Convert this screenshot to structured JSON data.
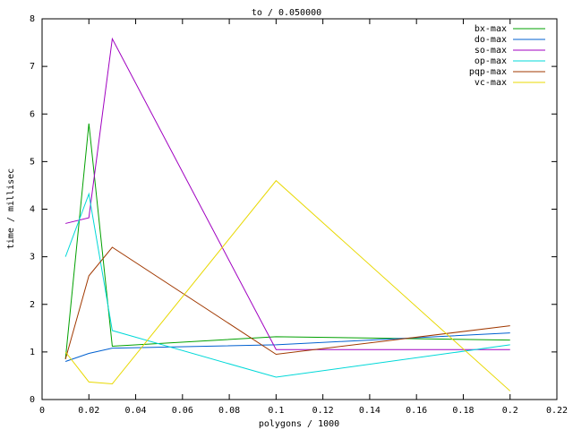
{
  "chart_data": {
    "type": "line",
    "title": "to / 0.050000",
    "x_label": "polygons / 1000",
    "y_label": "time / millisec",
    "x": [
      0.01,
      0.02,
      0.03,
      0.1,
      0.2
    ],
    "series": [
      {
        "name": "bx-max",
        "color": "#00a000",
        "values": [
          0.85,
          5.8,
          1.12,
          1.32,
          1.25
        ]
      },
      {
        "name": "do-max",
        "color": "#0060d0",
        "values": [
          0.8,
          0.97,
          1.08,
          1.15,
          1.4
        ]
      },
      {
        "name": "so-max",
        "color": "#a000c0",
        "values": [
          3.7,
          3.82,
          7.58,
          1.05,
          1.05
        ]
      },
      {
        "name": "op-max",
        "color": "#00d8d8",
        "values": [
          3.0,
          4.32,
          1.45,
          0.47,
          1.15
        ]
      },
      {
        "name": "pqp-max",
        "color": "#a03800",
        "values": [
          0.85,
          2.6,
          3.2,
          0.95,
          1.55
        ]
      },
      {
        "name": "vc-max",
        "color": "#e8d800",
        "values": [
          1.0,
          0.37,
          0.33,
          4.6,
          0.18
        ]
      }
    ],
    "xlim": [
      0,
      0.22
    ],
    "xticks": [
      0,
      0.02,
      0.04,
      0.06,
      0.08,
      0.1,
      0.12,
      0.14,
      0.16,
      0.18,
      0.2,
      0.22
    ],
    "ylim": [
      0,
      8
    ],
    "yticks": [
      0,
      1,
      2,
      3,
      4,
      5,
      6,
      7,
      8
    ],
    "grid": false,
    "legend": "top-right"
  }
}
